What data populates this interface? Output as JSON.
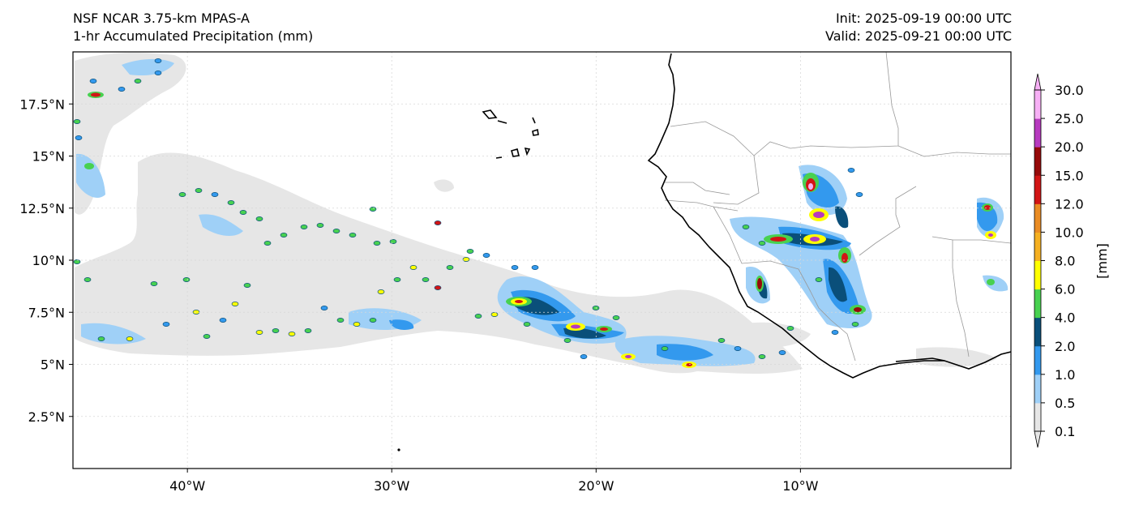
{
  "header": {
    "model": "NSF NCAR 3.75-km MPAS-A",
    "field": "1-hr Accumulated Precipitation (mm)",
    "init": "Init: 2025-09-19 00:00 UTC",
    "valid": "Valid: 2025-09-21 00:00 UTC"
  },
  "map": {
    "lon_range": [
      -45.6,
      0.3
    ],
    "lat_range": [
      0.0,
      20.0
    ],
    "lon_ticks": [
      -40,
      -30,
      -20,
      -10
    ],
    "lon_tick_labels": [
      "40°W",
      "30°W",
      "20°W",
      "10°W"
    ],
    "lat_ticks": [
      2.5,
      5.0,
      7.5,
      10.0,
      12.5,
      15.0,
      17.5
    ],
    "lat_tick_labels": [
      "2.5°N",
      "5°N",
      "7.5°N",
      "10°N",
      "12.5°N",
      "15°N",
      "17.5°N"
    ],
    "gridlines": true
  },
  "colorbar": {
    "label": "[mm]",
    "levels": [
      "0.1",
      "0.5",
      "1.0",
      "2.0",
      "4.0",
      "6.0",
      "8.0",
      "10.0",
      "12.0",
      "15.0",
      "20.0",
      "25.0",
      "30.0"
    ],
    "colors": [
      "#e6e6e6",
      "#9fd0f7",
      "#3399ee",
      "#0a4f7a",
      "#48d150",
      "#ffff00",
      "#f5b021",
      "#ea8c24",
      "#d21515",
      "#960a0a",
      "#b73abf",
      "#f7b0f5"
    ],
    "extend": "both"
  },
  "colors": {
    "coastline": "#000000",
    "borders": "#999999",
    "grid": "#d8d8d8"
  }
}
